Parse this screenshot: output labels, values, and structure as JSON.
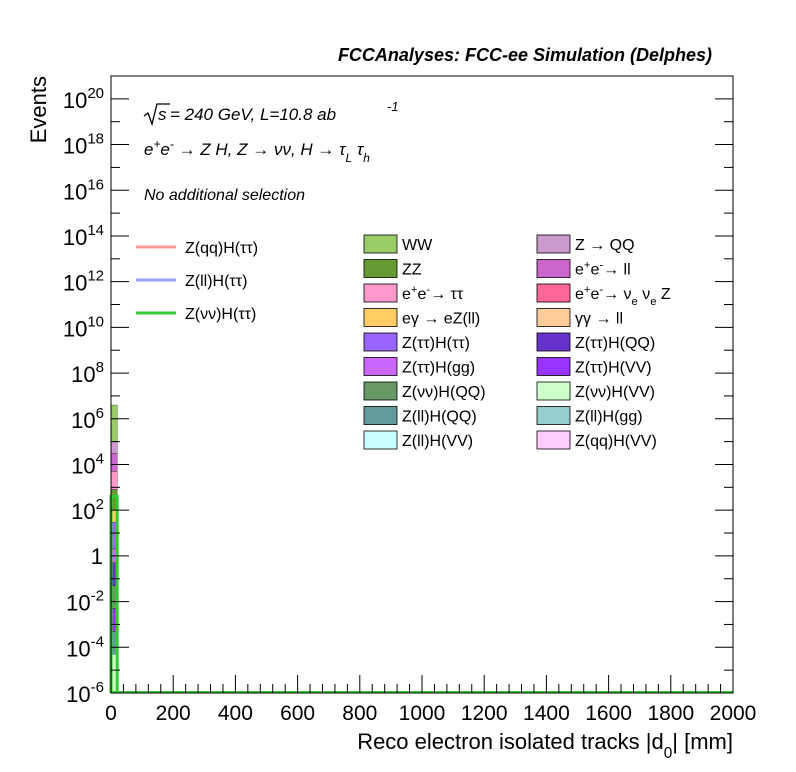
{
  "chart_data": {
    "type": "bar",
    "title": "FCCAnalyses: FCC-ee Simulation (Delphes)",
    "xlabel": "Reco electron isolated tracks |d_0| [mm]",
    "ylabel": "Events",
    "xlim": [
      0,
      2000
    ],
    "ylim": [
      1e-06,
      1e+21
    ],
    "yscale": "log",
    "grid": false,
    "x_ticks": [
      0,
      200,
      400,
      600,
      800,
      1000,
      1200,
      1400,
      1600,
      1800,
      2000
    ],
    "y_ticks": [
      {
        "mant": "10",
        "exp": "-6",
        "value": 1e-06
      },
      {
        "mant": "10",
        "exp": "-4",
        "value": 0.0001
      },
      {
        "mant": "10",
        "exp": "-2",
        "value": 0.01
      },
      {
        "mant": "1",
        "exp": "",
        "value": 1
      },
      {
        "mant": "10",
        "exp": "2",
        "value": 100.0
      },
      {
        "mant": "10",
        "exp": "4",
        "value": 10000.0
      },
      {
        "mant": "10",
        "exp": "6",
        "value": 1000000.0
      },
      {
        "mant": "10",
        "exp": "8",
        "value": 100000000.0
      },
      {
        "mant": "10",
        "exp": "10",
        "value": 10000000000.0
      },
      {
        "mant": "10",
        "exp": "12",
        "value": 1000000000000.0
      },
      {
        "mant": "10",
        "exp": "14",
        "value": 100000000000000.0
      },
      {
        "mant": "10",
        "exp": "16",
        "value": 1e+16
      },
      {
        "mant": "10",
        "exp": "18",
        "value": 1e+18
      },
      {
        "mant": "10",
        "exp": "20",
        "value": 1e+20
      }
    ],
    "annotations": {
      "sqrt_s": "s",
      "energy": " = 240 GeV, L=10.8 ab",
      "lumi_exp": "-1",
      "process": "e⁺e⁻ → Z H, Z → νν, H → τ_L τ_h",
      "selection": "No additional selection"
    },
    "legend_placement": "top-center",
    "signals": [
      {
        "name": "Z(qq)H(ττ)",
        "color": "#ff9999"
      },
      {
        "name": "Z(ll)H(ττ)",
        "color": "#9999ff"
      },
      {
        "name": "Z(νν)H(ττ)",
        "color": "#33cc33",
        "values": [
          400,
          1e-06
        ]
      }
    ],
    "backgrounds_col1": [
      {
        "name": "WW",
        "color": "#99cc66"
      },
      {
        "name": "ZZ",
        "color": "#669933"
      },
      {
        "name": "e⁺e⁻→ ττ",
        "color": "#ff99cc"
      },
      {
        "name": "eγ → eZ(ll)",
        "color": "#ffcc66"
      },
      {
        "name": "Z(ττ)H(ττ)",
        "color": "#9966ff"
      },
      {
        "name": "Z(ττ)H(gg)",
        "color": "#cc66ff"
      },
      {
        "name": "Z(νν)H(QQ)",
        "color": "#669966"
      },
      {
        "name": "Z(ll)H(QQ)",
        "color": "#669999"
      },
      {
        "name": "Z(ll)H(VV)",
        "color": "#ccffff"
      }
    ],
    "backgrounds_col2": [
      {
        "name": "Z → QQ",
        "color": "#cc99cc"
      },
      {
        "name": "e⁺e⁻→ ll",
        "color": "#cc66cc"
      },
      {
        "name": "e⁺e⁻→ ν_e ν_e Z",
        "color": "#ff6699"
      },
      {
        "name": "γγ → ll",
        "color": "#ffcc99"
      },
      {
        "name": "Z(ττ)H(QQ)",
        "color": "#6633cc"
      },
      {
        "name": "Z(ττ)H(VV)",
        "color": "#9933ff"
      },
      {
        "name": "Z(νν)H(VV)",
        "color": "#ccffcc"
      },
      {
        "name": "Z(ll)H(gg)",
        "color": "#99cccc"
      },
      {
        "name": "Z(qq)H(VV)",
        "color": "#ffccff"
      }
    ],
    "stack_first_bin": {
      "x": [
        0,
        20
      ],
      "segments": [
        {
          "name": "WW",
          "color": "#99cc66",
          "from": 100000.0,
          "to": 4000000.0
        },
        {
          "name": "Z → QQ",
          "color": "#cc99cc",
          "from": 30000.0,
          "to": 100000.0
        },
        {
          "name": "e⁺e⁻→ ll",
          "color": "#cc66cc",
          "from": 5000.0,
          "to": 30000.0
        },
        {
          "name": "e⁺e⁻→ ττ",
          "color": "#ff99cc",
          "from": 800,
          "to": 5000
        },
        {
          "name": "ZZ",
          "color": "#669933",
          "from": 100,
          "to": 800
        },
        {
          "name": "eγ → eZ(ll)",
          "color": "#ffcc66",
          "from": 30,
          "to": 100
        },
        {
          "name": "Z(ττ)H(ττ)",
          "color": "#9966ff",
          "from": 2,
          "to": 30
        },
        {
          "name": "Z(ττ)H(gg)",
          "color": "#cc66ff",
          "from": 0.5,
          "to": 2
        },
        {
          "name": "Z(ττ)H(QQ)",
          "color": "#6633cc",
          "from": 0.05,
          "to": 0.5
        },
        {
          "name": "Z(νν)H(QQ)",
          "color": "#669966",
          "from": 0.005,
          "to": 0.05
        },
        {
          "name": "Z(ττ)H(VV)",
          "color": "#9933ff",
          "from": 0.0005,
          "to": 0.005
        },
        {
          "name": "Z(ll)H(QQ)",
          "color": "#669999",
          "from": 5e-05,
          "to": 0.0005
        },
        {
          "name": "Z(νν)H(VV)",
          "color": "#ccffcc",
          "from": 1e-06,
          "to": 5e-05
        }
      ]
    },
    "colors": {
      "axis": "#000000",
      "flat_line": "#33cc33"
    }
  }
}
